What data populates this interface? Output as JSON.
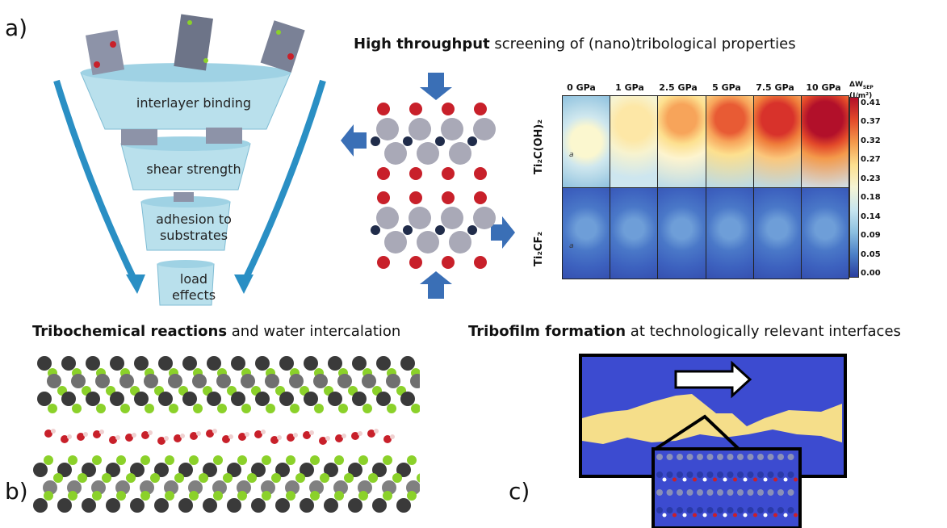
{
  "panel_labels": {
    "a": "a)",
    "b": "b)",
    "c": "c)"
  },
  "headings": {
    "top": {
      "bold": "High throughput",
      "rest": " screening of (nano)tribological properties"
    },
    "left": {
      "bold": "Tribochemical reactions",
      "rest": " and water intercalation"
    },
    "right": {
      "bold": "Tribofilm formation",
      "rest": " at technologically relevant  interfaces"
    }
  },
  "funnel": {
    "stages": [
      "interlayer binding",
      "shear strength",
      "adhesion to substrates",
      "load effects"
    ],
    "stage_lines": [
      [
        "interlayer binding"
      ],
      [
        "shear strength"
      ],
      [
        "adhesion to",
        "substrates"
      ],
      [
        "load",
        "effects"
      ]
    ]
  },
  "heatmap": {
    "pressures": [
      "0 GPa",
      "1 GPa",
      "2.5 GPa",
      "5 GPa",
      "7.5 GPa",
      "10 GPa"
    ],
    "rows": [
      {
        "name": "Ti₂C(OH)₂",
        "intensity": [
          0.1,
          0.2,
          0.55,
          0.7,
          0.85,
          0.95
        ]
      },
      {
        "name": "Ti₂CF₂",
        "intensity": [
          0.05,
          0.06,
          0.07,
          0.08,
          0.1,
          0.15
        ]
      }
    ],
    "colorbar": {
      "title": "ΔW",
      "subscript": "SEP",
      "unit": "(J/m²)",
      "ticks": [
        "0.41",
        "0.37",
        "0.32",
        "0.27",
        "0.23",
        "0.18",
        "0.14",
        "0.09",
        "0.05",
        "0.00"
      ]
    },
    "cell_marker": "a"
  },
  "colors": {
    "funnel_body": "#b9e0ec",
    "funnel_edge": "#2a8fc4",
    "arrow_blue": "#3a6fb6",
    "tribofilm_bg": "#3c4bd0",
    "tribofilm_band": "#f5de8a",
    "molecule_O": "#c8202a",
    "molecule_Ti": "#a9a9b7",
    "molecule_C": "#202c4a",
    "fluorine": "#8bd12a"
  }
}
